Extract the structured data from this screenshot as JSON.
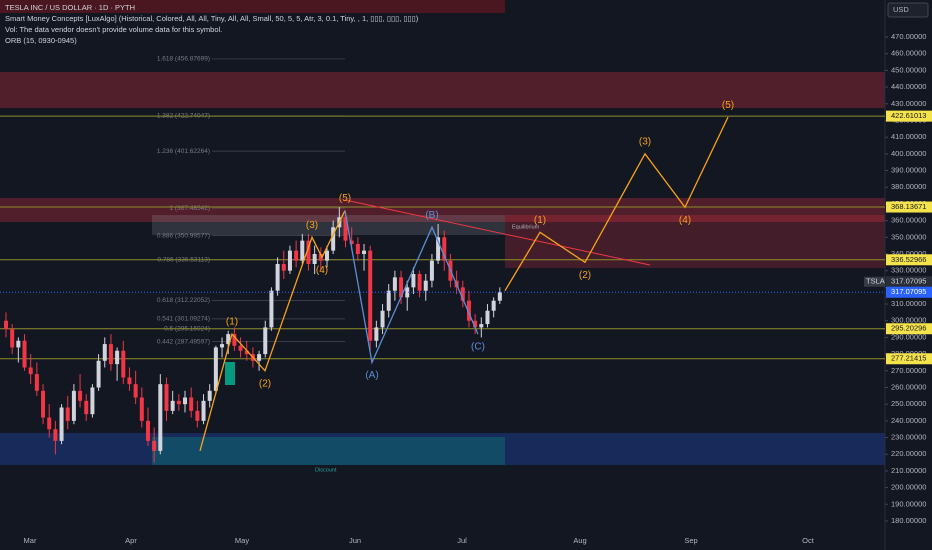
{
  "chart_data": {
    "type": "candlestick",
    "title": "TESLA INC / US DOLLAR · 1D · PYTH",
    "indicators": [
      "Smart Money Concepts [LuxAlgo] (Historical, Colored, All, All, Tiny, All, All, Small, 50, 5, 5, Atr, 3, 0.1, Tiny, , 1, ▯▯▯, ▯▯▯, ▯▯▯)",
      "Vol: The data vendor doesn't provide volume data for this symbol.",
      "ORB (15, 0930-0945)"
    ],
    "currency": "USD",
    "symbol": "TSLA",
    "last_price": 317.07095,
    "up_color": "#d1d4dc",
    "down_color": "#f23645",
    "categories": [
      "Mar",
      "Apr",
      "May",
      "Jun",
      "Jul",
      "Aug",
      "Sep",
      "Oct"
    ],
    "ylim": [
      173.4,
      492.2
    ],
    "yticks": [
      {
        "value": 180,
        "label": "180.00000"
      },
      {
        "value": 190,
        "label": "190.00000"
      },
      {
        "value": 200,
        "label": "200.00000"
      },
      {
        "value": 210,
        "label": "210.00000"
      },
      {
        "value": 220,
        "label": "220.00000"
      },
      {
        "value": 230,
        "label": "230.00000"
      },
      {
        "value": 240,
        "label": "240.00000"
      },
      {
        "value": 250,
        "label": "250.00000"
      },
      {
        "value": 260,
        "label": "260.00000"
      },
      {
        "value": 270,
        "label": "270.00000"
      },
      {
        "value": 280,
        "label": "280.00000"
      },
      {
        "value": 290,
        "label": "290.00000"
      },
      {
        "value": 300,
        "label": "300.00000"
      },
      {
        "value": 310,
        "label": "310.00000"
      },
      {
        "value": 320,
        "label": "320.00000"
      },
      {
        "value": 330,
        "label": "330.00000"
      },
      {
        "value": 340,
        "label": "340.00000"
      },
      {
        "value": 350,
        "label": "350.00000"
      },
      {
        "value": 360,
        "label": "360.00000"
      },
      {
        "value": 370,
        "label": "370.00000"
      },
      {
        "value": 380,
        "label": "380.00000"
      },
      {
        "value": 390,
        "label": "390.00000"
      },
      {
        "value": 400,
        "label": "400.00000"
      },
      {
        "value": 410,
        "label": "410.00000"
      },
      {
        "value": 420,
        "label": "420.00000"
      },
      {
        "value": 430,
        "label": "430.00000"
      },
      {
        "value": 440,
        "label": "440.00000"
      },
      {
        "value": 450,
        "label": "450.00000"
      },
      {
        "value": 460,
        "label": "460.00000"
      },
      {
        "value": 470,
        "label": "470.00000"
      }
    ],
    "levels": [
      422.61013,
      368.13671,
      336.52966,
      295.20296,
      277.21415
    ],
    "fib": [
      {
        "value": 456.87699,
        "label": "1.618 (456.87699)"
      },
      {
        "value": 422.74047,
        "label": "1.382 (422.74047)"
      },
      {
        "value": 401.62264,
        "label": "1.236 (401.62264)"
      },
      {
        "value": 367.48542,
        "label": "1 (367.48542)"
      },
      {
        "value": 350.99577,
        "label": "0.886 (350.99577)"
      },
      {
        "value": 336.53113,
        "label": "0.786 (336.53113)"
      },
      {
        "value": 312.22052,
        "label": "0.618 (312.22052)"
      },
      {
        "value": 301.09274,
        "label": "0.541 (301.09274)"
      },
      {
        "value": 295.16024,
        "label": "0.5 (295.16024)"
      },
      {
        "value": 287.49597,
        "label": "0.442 (287.49597)"
      }
    ],
    "zone_labels": [
      "Equilibrium",
      "Discount"
    ],
    "waves": [
      {
        "color": "#f7a21b",
        "labels": [
          null,
          "(1)",
          "(2)",
          "(3)",
          "(4)",
          "(5)"
        ],
        "values": [
          222,
          292,
          270,
          350,
          338,
          366
        ]
      },
      {
        "color": "#5b8fd6",
        "labels": [
          null,
          "(A)",
          "(B)",
          "(C)"
        ],
        "values": [
          366,
          275,
          356,
          292
        ]
      },
      {
        "color": "#f7a21b",
        "labels": [
          null,
          "(1)",
          "(2)",
          "(3)",
          "(4)",
          "(5)"
        ],
        "values": [
          318,
          353,
          335,
          400,
          368,
          422
        ]
      }
    ],
    "candles": [
      [
        300,
        305,
        290,
        295
      ],
      [
        295,
        298,
        280,
        284
      ],
      [
        284,
        290,
        275,
        288
      ],
      [
        288,
        292,
        270,
        272
      ],
      [
        272,
        280,
        262,
        268
      ],
      [
        268,
        275,
        255,
        258
      ],
      [
        258,
        262,
        238,
        242
      ],
      [
        242,
        250,
        230,
        235
      ],
      [
        235,
        240,
        220,
        228
      ],
      [
        228,
        250,
        226,
        248
      ],
      [
        248,
        255,
        235,
        240
      ],
      [
        240,
        262,
        238,
        258
      ],
      [
        258,
        268,
        248,
        252
      ],
      [
        252,
        256,
        240,
        244
      ],
      [
        244,
        262,
        242,
        260
      ],
      [
        260,
        280,
        258,
        276
      ],
      [
        276,
        290,
        272,
        286
      ],
      [
        286,
        292,
        270,
        274
      ],
      [
        274,
        284,
        264,
        282
      ],
      [
        282,
        288,
        262,
        266
      ],
      [
        266,
        272,
        258,
        262
      ],
      [
        262,
        270,
        250,
        254
      ],
      [
        254,
        260,
        236,
        240
      ],
      [
        240,
        248,
        225,
        228
      ],
      [
        228,
        236,
        215,
        222
      ],
      [
        222,
        268,
        220,
        262
      ],
      [
        262,
        266,
        240,
        246
      ],
      [
        246,
        258,
        244,
        252
      ],
      [
        252,
        256,
        246,
        250
      ],
      [
        250,
        258,
        245,
        254
      ],
      [
        254,
        260,
        242,
        246
      ],
      [
        246,
        252,
        236,
        240
      ],
      [
        240,
        256,
        238,
        252
      ],
      [
        252,
        262,
        248,
        258
      ],
      [
        258,
        285,
        256,
        284
      ],
      [
        284,
        290,
        278,
        286
      ],
      [
        286,
        294,
        280,
        292
      ],
      [
        292,
        296,
        282,
        285
      ],
      [
        285,
        290,
        278,
        282
      ],
      [
        282,
        288,
        276,
        280
      ],
      [
        280,
        284,
        272,
        276
      ],
      [
        276,
        282,
        270,
        280
      ],
      [
        280,
        300,
        278,
        296
      ],
      [
        296,
        320,
        294,
        318
      ],
      [
        318,
        338,
        315,
        334
      ],
      [
        334,
        342,
        325,
        330
      ],
      [
        330,
        345,
        328,
        342
      ],
      [
        342,
        348,
        332,
        336
      ],
      [
        336,
        352,
        334,
        348
      ],
      [
        348,
        352,
        330,
        334
      ],
      [
        334,
        345,
        328,
        340
      ],
      [
        340,
        344,
        330,
        336
      ],
      [
        336,
        345,
        332,
        342
      ],
      [
        342,
        360,
        340,
        356
      ],
      [
        356,
        368,
        350,
        362
      ],
      [
        362,
        366,
        344,
        348
      ],
      [
        348,
        356,
        342,
        346
      ],
      [
        346,
        350,
        336,
        340
      ],
      [
        340,
        346,
        330,
        342
      ],
      [
        342,
        345,
        282,
        288
      ],
      [
        288,
        300,
        284,
        296
      ],
      [
        296,
        310,
        292,
        306
      ],
      [
        306,
        322,
        302,
        318
      ],
      [
        318,
        330,
        312,
        326
      ],
      [
        326,
        330,
        310,
        314
      ],
      [
        314,
        324,
        306,
        320
      ],
      [
        320,
        332,
        316,
        328
      ],
      [
        328,
        330,
        314,
        318
      ],
      [
        318,
        328,
        312,
        324
      ],
      [
        324,
        340,
        320,
        336
      ],
      [
        336,
        358,
        334,
        350
      ],
      [
        350,
        354,
        330,
        336
      ],
      [
        336,
        340,
        320,
        324
      ],
      [
        324,
        330,
        316,
        320
      ],
      [
        320,
        324,
        308,
        312
      ],
      [
        312,
        318,
        296,
        300
      ],
      [
        300,
        304,
        292,
        296
      ],
      [
        296,
        302,
        290,
        298
      ],
      [
        298,
        310,
        296,
        306
      ],
      [
        306,
        314,
        302,
        312
      ],
      [
        312,
        320,
        310,
        317.07095
      ]
    ]
  }
}
